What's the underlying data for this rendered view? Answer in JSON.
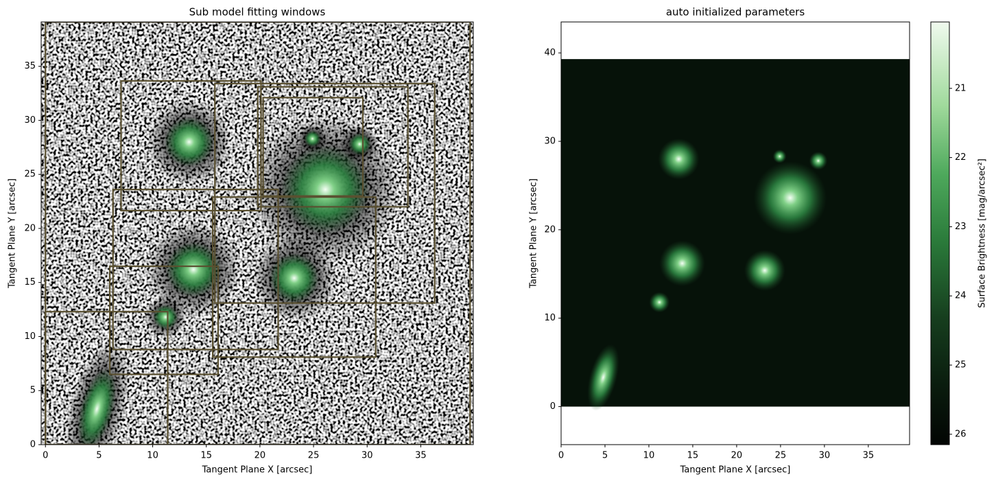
{
  "chart_data": [
    {
      "type": "image-windows",
      "title": "Sub model fitting windows",
      "x_label": "Tangent Plane X [arcsec]",
      "y_label": "Tangent Plane Y [arcsec]",
      "xlim": [
        -0.4,
        39.9
      ],
      "ylim": [
        0,
        39.1
      ],
      "xticks": [
        0,
        5,
        10,
        15,
        20,
        25,
        30,
        35
      ],
      "yticks": [
        0,
        5,
        10,
        15,
        20,
        25,
        30,
        35
      ],
      "window_color": "#5a5030",
      "windows": [
        {
          "x": [
            7.05,
            20.1
          ],
          "y": [
            21.65,
            33.65
          ]
        },
        {
          "x": [
            15.8,
            36.3
          ],
          "y": [
            13.1,
            33.4
          ]
        },
        {
          "x": [
            19.8,
            33.8
          ],
          "y": [
            22.0,
            33.1
          ]
        },
        {
          "x": [
            20.3,
            29.6
          ],
          "y": [
            23.0,
            32.1
          ]
        },
        {
          "x": [
            6.3,
            21.7
          ],
          "y": [
            8.8,
            23.6
          ]
        },
        {
          "x": [
            15.6,
            30.8
          ],
          "y": [
            8.1,
            22.9
          ]
        },
        {
          "x": [
            6.0,
            16.1
          ],
          "y": [
            6.5,
            16.5
          ]
        },
        {
          "x": [
            0,
            11.4
          ],
          "y": [
            0,
            12.3
          ]
        },
        {
          "x": [
            0,
            39.6
          ],
          "y": [
            0,
            39.1
          ]
        }
      ],
      "sources": {
        "x": [
          4.8,
          11.2,
          13.8,
          13.4,
          23.2,
          26.1,
          29.3,
          24.9
        ],
        "y": [
          3.3,
          11.8,
          16.2,
          28.0,
          15.4,
          23.6,
          27.8,
          28.3
        ],
        "size": [
          3.0,
          0.9,
          2.0,
          1.8,
          1.8,
          3.2,
          0.8,
          0.6
        ],
        "q": [
          0.4,
          1,
          1,
          1,
          1,
          1,
          1,
          1
        ],
        "pa": [
          15,
          0,
          0,
          0,
          0,
          0,
          0,
          0
        ]
      }
    },
    {
      "type": "image-model",
      "title": "auto initialized parameters",
      "x_label": "Tangent Plane X [arcsec]",
      "y_label": "Tangent Plane Y [arcsec]",
      "xlim": [
        0,
        39.7
      ],
      "ylim": [
        -4.3,
        43.5
      ],
      "xticks": [
        0,
        5,
        10,
        15,
        20,
        25,
        30,
        35
      ],
      "yticks": [
        0,
        10,
        20,
        30,
        40
      ],
      "extent": [
        0,
        39.7,
        0,
        39.3
      ],
      "sources": {
        "x": [
          4.8,
          11.2,
          13.8,
          13.4,
          23.2,
          26.1,
          29.3,
          24.9
        ],
        "y": [
          3.3,
          11.8,
          16.2,
          28.0,
          15.4,
          23.6,
          27.8,
          28.3
        ],
        "size": [
          3.0,
          0.9,
          2.0,
          1.8,
          1.8,
          3.2,
          0.8,
          0.6
        ],
        "q": [
          0.4,
          1,
          1,
          1,
          1,
          1,
          1,
          1
        ],
        "pa": [
          15,
          0,
          0,
          0,
          0,
          0,
          0,
          0
        ]
      },
      "colorbar": {
        "label": "Surface Brightness [mag/arcsec²]",
        "lim": [
          26.15,
          20.04
        ],
        "ticks": [
          21,
          22,
          23,
          24,
          25,
          26
        ]
      }
    }
  ]
}
